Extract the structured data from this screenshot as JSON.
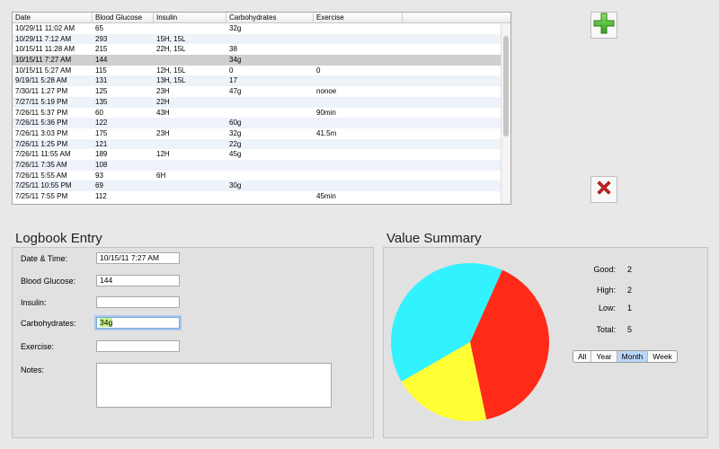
{
  "table": {
    "columns": [
      "Date",
      "Blood Glucose",
      "Insulin",
      "Carbohydrates",
      "Exercise"
    ],
    "rows": [
      [
        "10/29/11 11:02 AM",
        "65",
        "",
        "32g",
        ""
      ],
      [
        "10/29/11 7:12 AM",
        "293",
        "15H, 15L",
        "",
        ""
      ],
      [
        "10/15/11 11:28 AM",
        "215",
        "22H, 15L",
        "38",
        ""
      ],
      [
        "10/15/11 7:27 AM",
        "144",
        "",
        "34g",
        ""
      ],
      [
        "10/15/11 5:27 AM",
        "115",
        "12H, 15L",
        "0",
        "0"
      ],
      [
        "9/19/11 5:28 AM",
        "131",
        "13H, 15L",
        "17",
        ""
      ],
      [
        "7/30/11 1:27 PM",
        "125",
        "23H",
        "47g",
        "nonoe"
      ],
      [
        "7/27/11 5:19 PM",
        "135",
        "22H",
        "",
        ""
      ],
      [
        "7/26/11 5:37 PM",
        "60",
        "43H",
        "",
        "90min"
      ],
      [
        "7/26/11 5:36 PM",
        "122",
        "",
        "60g",
        ""
      ],
      [
        "7/26/11 3:03 PM",
        "175",
        "23H",
        "32g",
        "41.5m"
      ],
      [
        "7/26/11 1:25 PM",
        "121",
        "",
        "22g",
        ""
      ],
      [
        "7/26/11 11:55 AM",
        "189",
        "12H",
        "45g",
        ""
      ],
      [
        "7/26/11 7:35 AM",
        "108",
        "",
        "",
        ""
      ],
      [
        "7/26/11 5:55 AM",
        "93",
        "6H",
        "",
        ""
      ],
      [
        "7/25/11 10:55 PM",
        "69",
        "",
        "30g",
        ""
      ],
      [
        "7/25/11 7:55 PM",
        "112",
        "",
        "",
        "45min"
      ]
    ],
    "selected_row": 3
  },
  "icons": {
    "add": "plus-icon",
    "delete": "close-icon"
  },
  "logbook": {
    "title": "Logbook Entry",
    "date_label": "Date & Time:",
    "date_value": "10/15/11 7:27 AM",
    "glucose_label": "Blood Glucose:",
    "glucose_value": "144",
    "insulin_label": "Insulin:",
    "insulin_value": "",
    "carbs_label": "Carbohydrates:",
    "carbs_value": "34g",
    "exercise_label": "Exercise:",
    "exercise_value": "",
    "notes_label": "Notes:",
    "notes_value": ""
  },
  "summary": {
    "title": "Value Summary",
    "good_label": "Good:",
    "good_value": "2",
    "high_label": "High:",
    "high_value": "2",
    "low_label": "Low:",
    "low_value": "1",
    "total_label": "Total:",
    "total_value": "5",
    "ranges": [
      "All",
      "Year",
      "Month",
      "Week"
    ],
    "active_range": "Month"
  },
  "chart_data": {
    "type": "pie",
    "slices": [
      {
        "value": 2,
        "color": "#ff2a17"
      },
      {
        "value": 1,
        "color": "#ffff33"
      },
      {
        "value": 2,
        "color": "#33f2ff"
      }
    ]
  },
  "colors": {
    "add_icon": "#45c02b",
    "delete_icon": "#d42222"
  }
}
